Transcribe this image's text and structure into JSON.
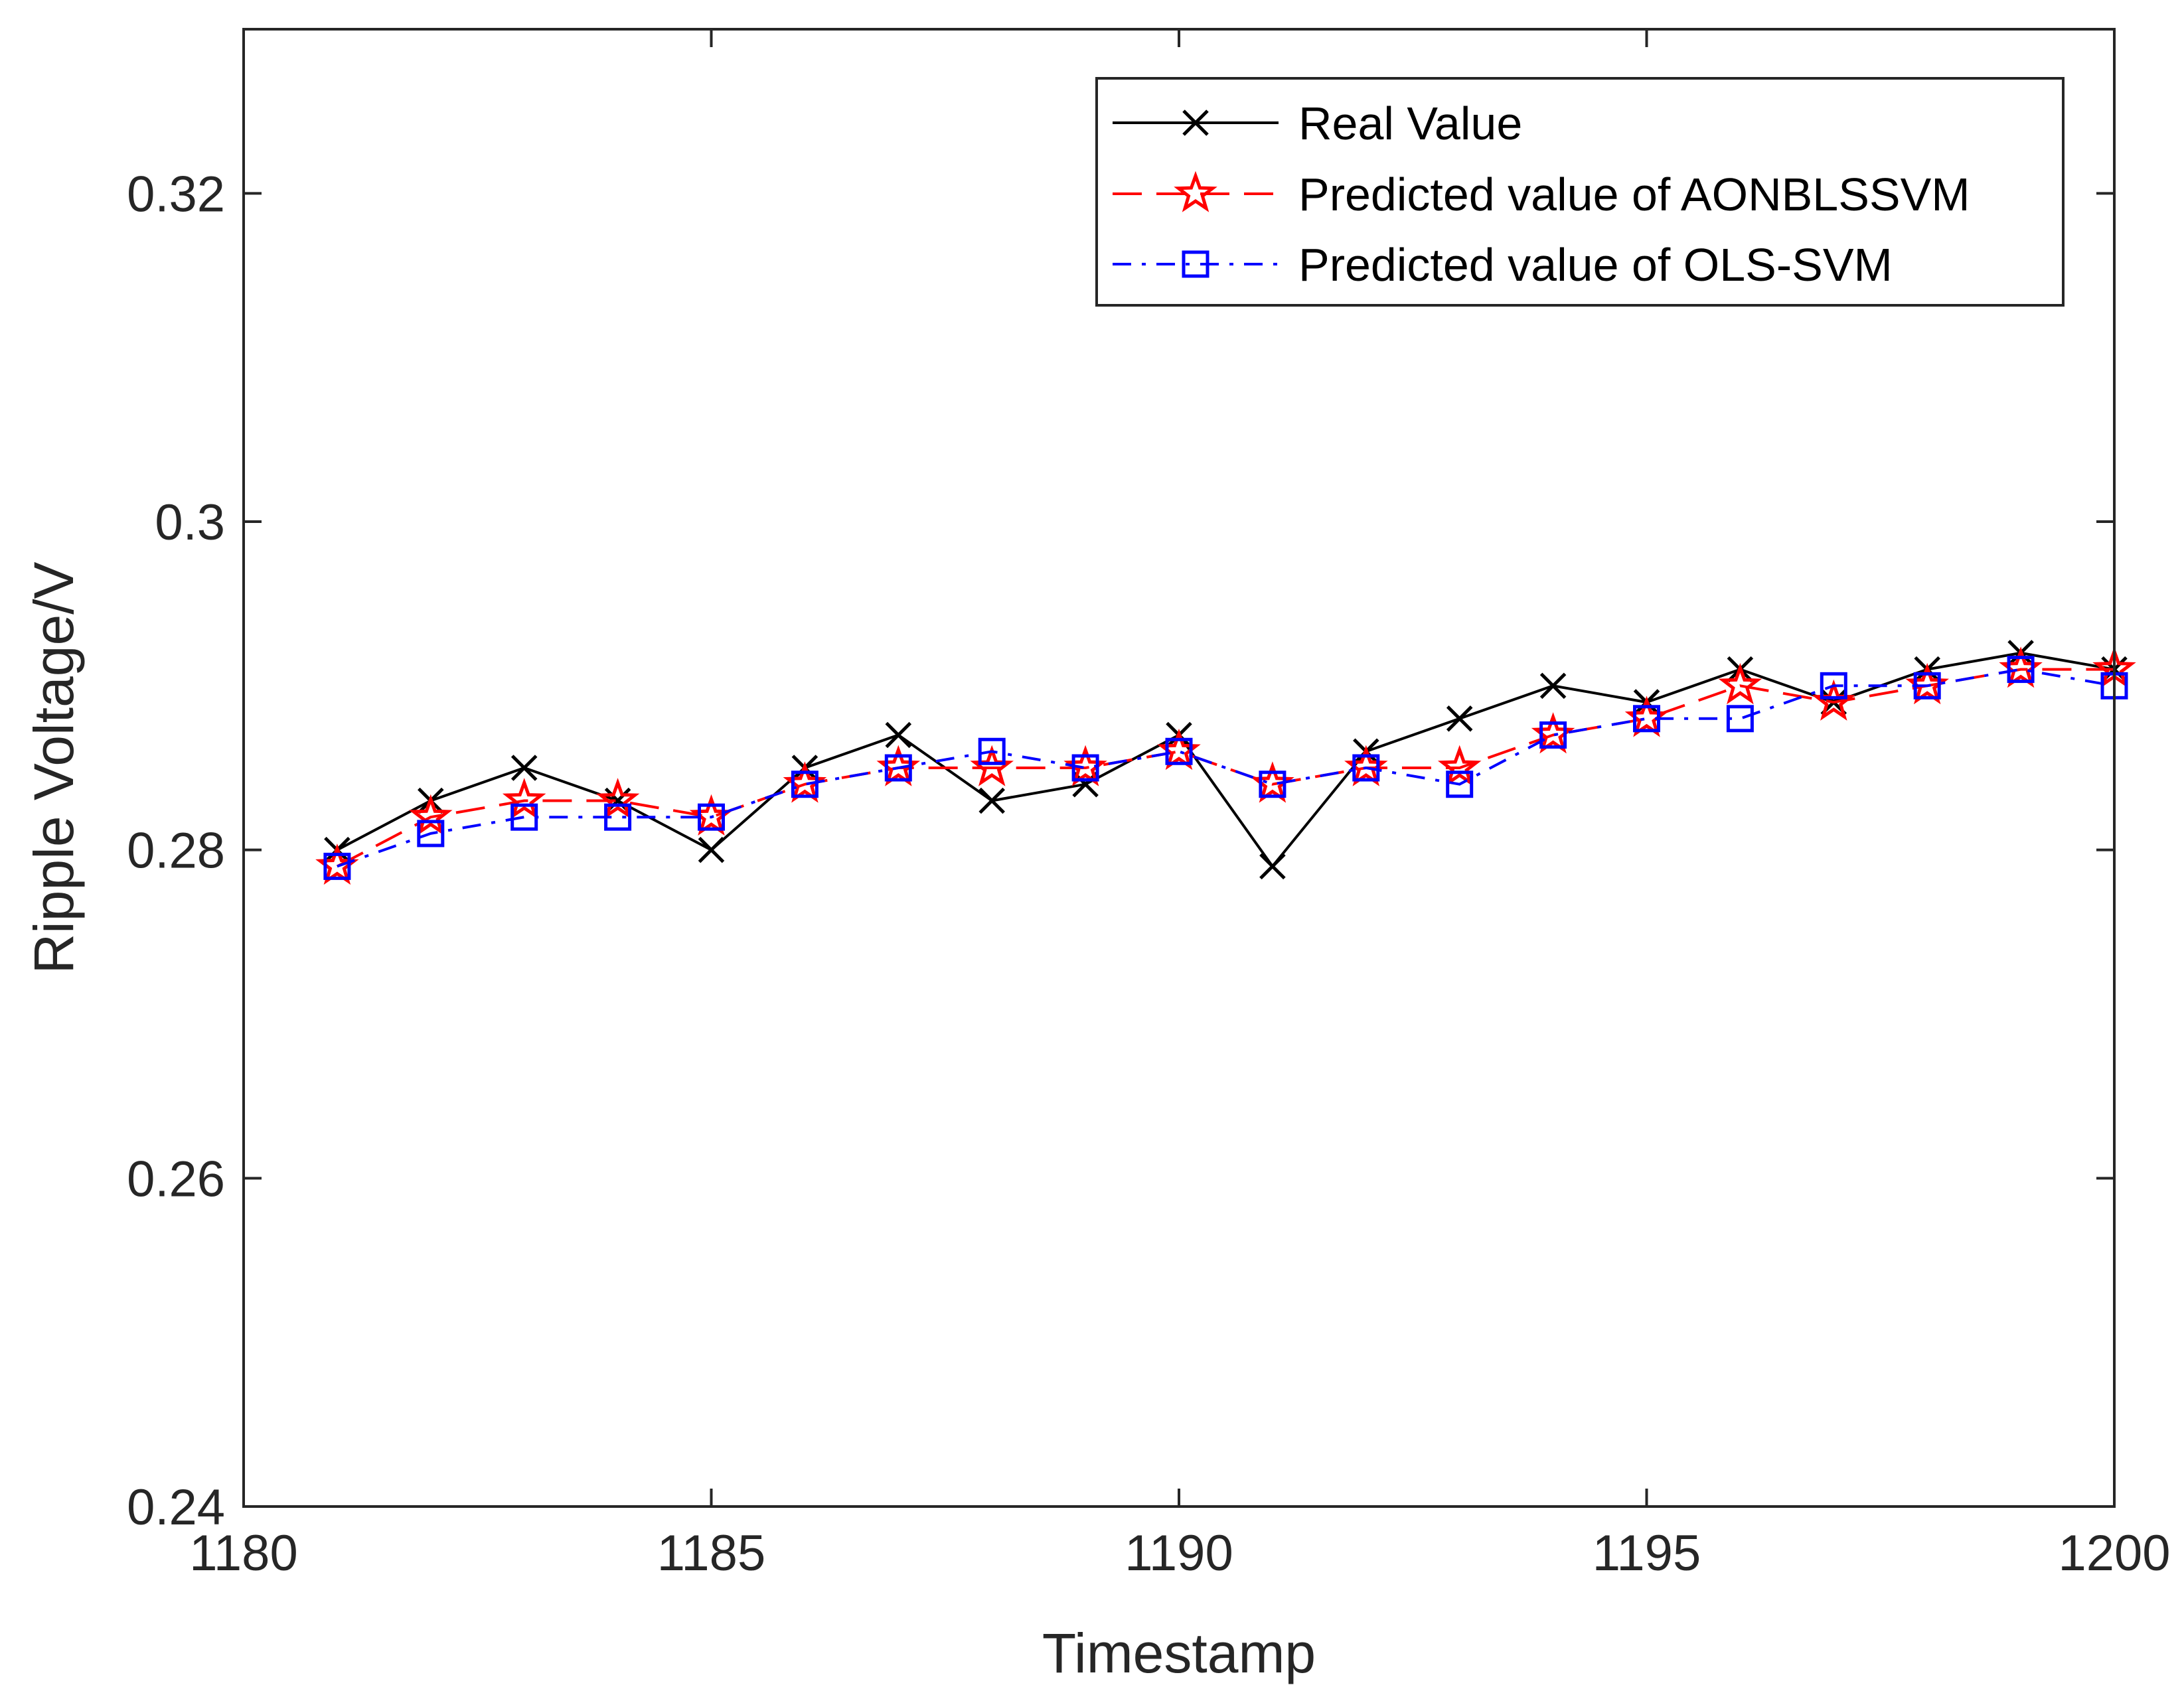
{
  "chart_data": {
    "type": "line",
    "title": "",
    "xlabel": "Timestamp",
    "ylabel": "Ripple Voltage/V",
    "xlim": [
      1180,
      1200
    ],
    "ylim": [
      0.24,
      0.33
    ],
    "xticks": [
      1180,
      1185,
      1190,
      1195,
      1200
    ],
    "xtick_labels": [
      "1180",
      "1185",
      "1190",
      "1195",
      "1200"
    ],
    "yticks": [
      0.24,
      0.26,
      0.28,
      0.3,
      0.32
    ],
    "ytick_labels": [
      "0.24",
      "0.26",
      "0.28",
      "0.3",
      "0.32"
    ],
    "grid": false,
    "legend_position": "top-right",
    "x": [
      1181,
      1182,
      1183,
      1184,
      1185,
      1186,
      1187,
      1188,
      1189,
      1190,
      1191,
      1192,
      1193,
      1194,
      1195,
      1196,
      1197,
      1198,
      1199,
      1200
    ],
    "series": [
      {
        "name": "Real  Value",
        "color": "#000000",
        "marker": "x",
        "dash": "solid",
        "values": [
          0.28,
          0.283,
          0.285,
          0.283,
          0.28,
          0.285,
          0.287,
          0.283,
          0.284,
          0.287,
          0.279,
          0.286,
          0.288,
          0.29,
          0.289,
          0.291,
          0.289,
          0.291,
          0.292,
          0.291
        ]
      },
      {
        "name": "Predicted value of AONBLSSVM",
        "color": "#ff0000",
        "marker": "star",
        "dash": "dashed",
        "values": [
          0.279,
          0.282,
          0.283,
          0.283,
          0.282,
          0.284,
          0.285,
          0.285,
          0.285,
          0.286,
          0.284,
          0.285,
          0.285,
          0.287,
          0.288,
          0.29,
          0.289,
          0.29,
          0.291,
          0.291
        ]
      },
      {
        "name": "Predicted value of OLS-SVM",
        "color": "#0000ff",
        "marker": "square",
        "dash": "dashdot",
        "values": [
          0.279,
          0.281,
          0.282,
          0.282,
          0.282,
          0.284,
          0.285,
          0.286,
          0.285,
          0.286,
          0.284,
          0.285,
          0.284,
          0.287,
          0.288,
          0.288,
          0.29,
          0.29,
          0.291,
          0.29
        ]
      }
    ]
  }
}
